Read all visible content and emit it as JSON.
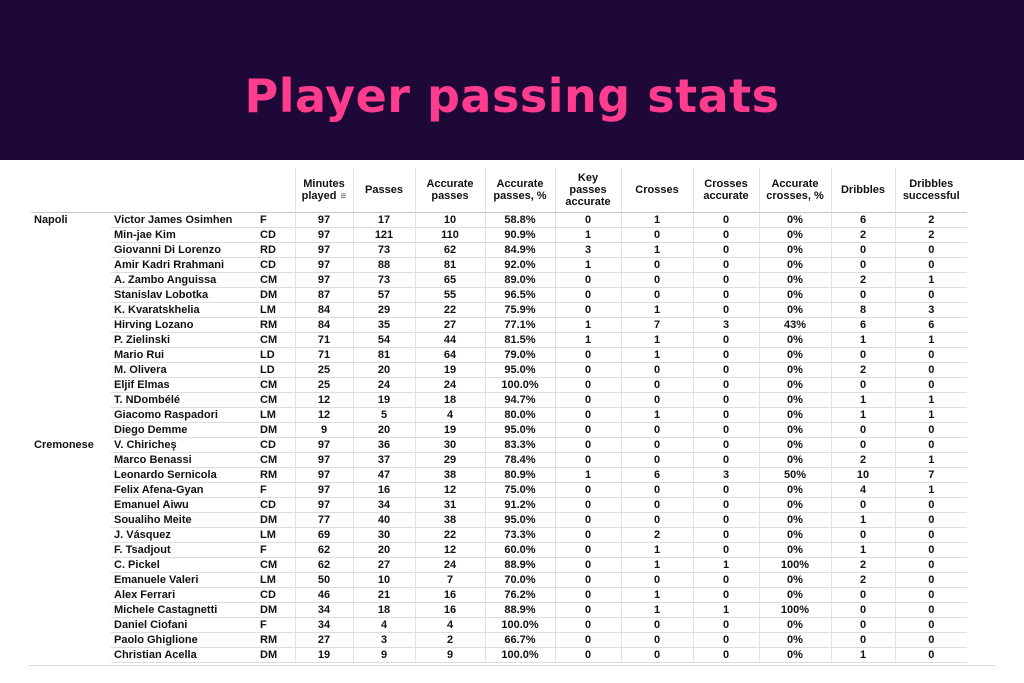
{
  "title": "Player passing stats",
  "columns": [
    "Minutes played",
    "Passes",
    "Accurate passes",
    "Accurate passes, %",
    "Key passes accurate",
    "Crosses",
    "Crosses accurate",
    "Accurate crosses, %",
    "Dribbles",
    "Dribbles successful"
  ],
  "columns_html": [
    "Minutes<br>played",
    "Passes",
    "Accurate<br>passes",
    "Accurate<br>passes, %",
    "Key<br>passes<br>accurate",
    "Crosses",
    "Crosses<br>accurate",
    "Accurate<br>crosses, %",
    "Dribbles",
    "Dribbles<br>successful"
  ],
  "sorted_column": 0,
  "rows": [
    {
      "team": "Napoli",
      "player": "Victor James Osimhen",
      "pos": "F",
      "vals": [
        "97",
        "17",
        "10",
        "58.8%",
        "0",
        "1",
        "0",
        "0%",
        "6",
        "2"
      ]
    },
    {
      "team": "",
      "player": "Min-jae Kim",
      "pos": "CD",
      "vals": [
        "97",
        "121",
        "110",
        "90.9%",
        "1",
        "0",
        "0",
        "0%",
        "2",
        "2"
      ]
    },
    {
      "team": "",
      "player": "Giovanni Di Lorenzo",
      "pos": "RD",
      "vals": [
        "97",
        "73",
        "62",
        "84.9%",
        "3",
        "1",
        "0",
        "0%",
        "0",
        "0"
      ]
    },
    {
      "team": "",
      "player": "Amir Kadri Rrahmani",
      "pos": "CD",
      "vals": [
        "97",
        "88",
        "81",
        "92.0%",
        "1",
        "0",
        "0",
        "0%",
        "0",
        "0"
      ]
    },
    {
      "team": "",
      "player": "A. Zambo Anguissa",
      "pos": "CM",
      "vals": [
        "97",
        "73",
        "65",
        "89.0%",
        "0",
        "0",
        "0",
        "0%",
        "2",
        "1"
      ]
    },
    {
      "team": "",
      "player": "Stanislav Lobotka",
      "pos": "DM",
      "vals": [
        "87",
        "57",
        "55",
        "96.5%",
        "0",
        "0",
        "0",
        "0%",
        "0",
        "0"
      ]
    },
    {
      "team": "",
      "player": "K. Kvaratskhelia",
      "pos": "LM",
      "vals": [
        "84",
        "29",
        "22",
        "75.9%",
        "0",
        "1",
        "0",
        "0%",
        "8",
        "3"
      ]
    },
    {
      "team": "",
      "player": "Hirving Lozano",
      "pos": "RM",
      "vals": [
        "84",
        "35",
        "27",
        "77.1%",
        "1",
        "7",
        "3",
        "43%",
        "6",
        "6"
      ]
    },
    {
      "team": "",
      "player": "P. Zielinski",
      "pos": "CM",
      "vals": [
        "71",
        "54",
        "44",
        "81.5%",
        "1",
        "1",
        "0",
        "0%",
        "1",
        "1"
      ]
    },
    {
      "team": "",
      "player": "Mario Rui",
      "pos": "LD",
      "vals": [
        "71",
        "81",
        "64",
        "79.0%",
        "0",
        "1",
        "0",
        "0%",
        "0",
        "0"
      ]
    },
    {
      "team": "",
      "player": "M. Olivera",
      "pos": "LD",
      "vals": [
        "25",
        "20",
        "19",
        "95.0%",
        "0",
        "0",
        "0",
        "0%",
        "2",
        "0"
      ]
    },
    {
      "team": "",
      "player": "Eljif Elmas",
      "pos": "CM",
      "vals": [
        "25",
        "24",
        "24",
        "100.0%",
        "0",
        "0",
        "0",
        "0%",
        "0",
        "0"
      ]
    },
    {
      "team": "",
      "player": "T. NDombélé",
      "pos": "CM",
      "vals": [
        "12",
        "19",
        "18",
        "94.7%",
        "0",
        "0",
        "0",
        "0%",
        "1",
        "1"
      ]
    },
    {
      "team": "",
      "player": "Giacomo Raspadori",
      "pos": "LM",
      "vals": [
        "12",
        "5",
        "4",
        "80.0%",
        "0",
        "1",
        "0",
        "0%",
        "1",
        "1"
      ]
    },
    {
      "team": "",
      "player": "Diego Demme",
      "pos": "DM",
      "vals": [
        "9",
        "20",
        "19",
        "95.0%",
        "0",
        "0",
        "0",
        "0%",
        "0",
        "0"
      ]
    },
    {
      "team": "Cremonese",
      "player": "V. Chiricheş",
      "pos": "CD",
      "vals": [
        "97",
        "36",
        "30",
        "83.3%",
        "0",
        "0",
        "0",
        "0%",
        "0",
        "0"
      ]
    },
    {
      "team": "",
      "player": "Marco Benassi",
      "pos": "CM",
      "vals": [
        "97",
        "37",
        "29",
        "78.4%",
        "0",
        "0",
        "0",
        "0%",
        "2",
        "1"
      ]
    },
    {
      "team": "",
      "player": "Leonardo Sernicola",
      "pos": "RM",
      "vals": [
        "97",
        "47",
        "38",
        "80.9%",
        "1",
        "6",
        "3",
        "50%",
        "10",
        "7"
      ]
    },
    {
      "team": "",
      "player": "Felix Afena-Gyan",
      "pos": "F",
      "vals": [
        "97",
        "16",
        "12",
        "75.0%",
        "0",
        "0",
        "0",
        "0%",
        "4",
        "1"
      ]
    },
    {
      "team": "",
      "player": "Emanuel Aiwu",
      "pos": "CD",
      "vals": [
        "97",
        "34",
        "31",
        "91.2%",
        "0",
        "0",
        "0",
        "0%",
        "0",
        "0"
      ]
    },
    {
      "team": "",
      "player": "Soualiho Meite",
      "pos": "DM",
      "vals": [
        "77",
        "40",
        "38",
        "95.0%",
        "0",
        "0",
        "0",
        "0%",
        "1",
        "0"
      ]
    },
    {
      "team": "",
      "player": "J. Vásquez",
      "pos": "LM",
      "vals": [
        "69",
        "30",
        "22",
        "73.3%",
        "0",
        "2",
        "0",
        "0%",
        "0",
        "0"
      ]
    },
    {
      "team": "",
      "player": "F. Tsadjout",
      "pos": "F",
      "vals": [
        "62",
        "20",
        "12",
        "60.0%",
        "0",
        "1",
        "0",
        "0%",
        "1",
        "0"
      ]
    },
    {
      "team": "",
      "player": "C. Pickel",
      "pos": "CM",
      "vals": [
        "62",
        "27",
        "24",
        "88.9%",
        "0",
        "1",
        "1",
        "100%",
        "2",
        "0"
      ]
    },
    {
      "team": "",
      "player": "Emanuele Valeri",
      "pos": "LM",
      "vals": [
        "50",
        "10",
        "7",
        "70.0%",
        "0",
        "0",
        "0",
        "0%",
        "2",
        "0"
      ]
    },
    {
      "team": "",
      "player": "Alex Ferrari",
      "pos": "CD",
      "vals": [
        "46",
        "21",
        "16",
        "76.2%",
        "0",
        "1",
        "0",
        "0%",
        "0",
        "0"
      ]
    },
    {
      "team": "",
      "player": "Michele Castagnetti",
      "pos": "DM",
      "vals": [
        "34",
        "18",
        "16",
        "88.9%",
        "0",
        "1",
        "1",
        "100%",
        "0",
        "0"
      ]
    },
    {
      "team": "",
      "player": "Daniel Ciofani",
      "pos": "F",
      "vals": [
        "34",
        "4",
        "4",
        "100.0%",
        "0",
        "0",
        "0",
        "0%",
        "0",
        "0"
      ]
    },
    {
      "team": "",
      "player": "Paolo Ghiglione",
      "pos": "RM",
      "vals": [
        "27",
        "3",
        "2",
        "66.7%",
        "0",
        "0",
        "0",
        "0%",
        "0",
        "0"
      ]
    },
    {
      "team": "",
      "player": "Christian Acella",
      "pos": "DM",
      "vals": [
        "19",
        "9",
        "9",
        "100.0%",
        "0",
        "0",
        "0",
        "0%",
        "1",
        "0"
      ]
    }
  ]
}
